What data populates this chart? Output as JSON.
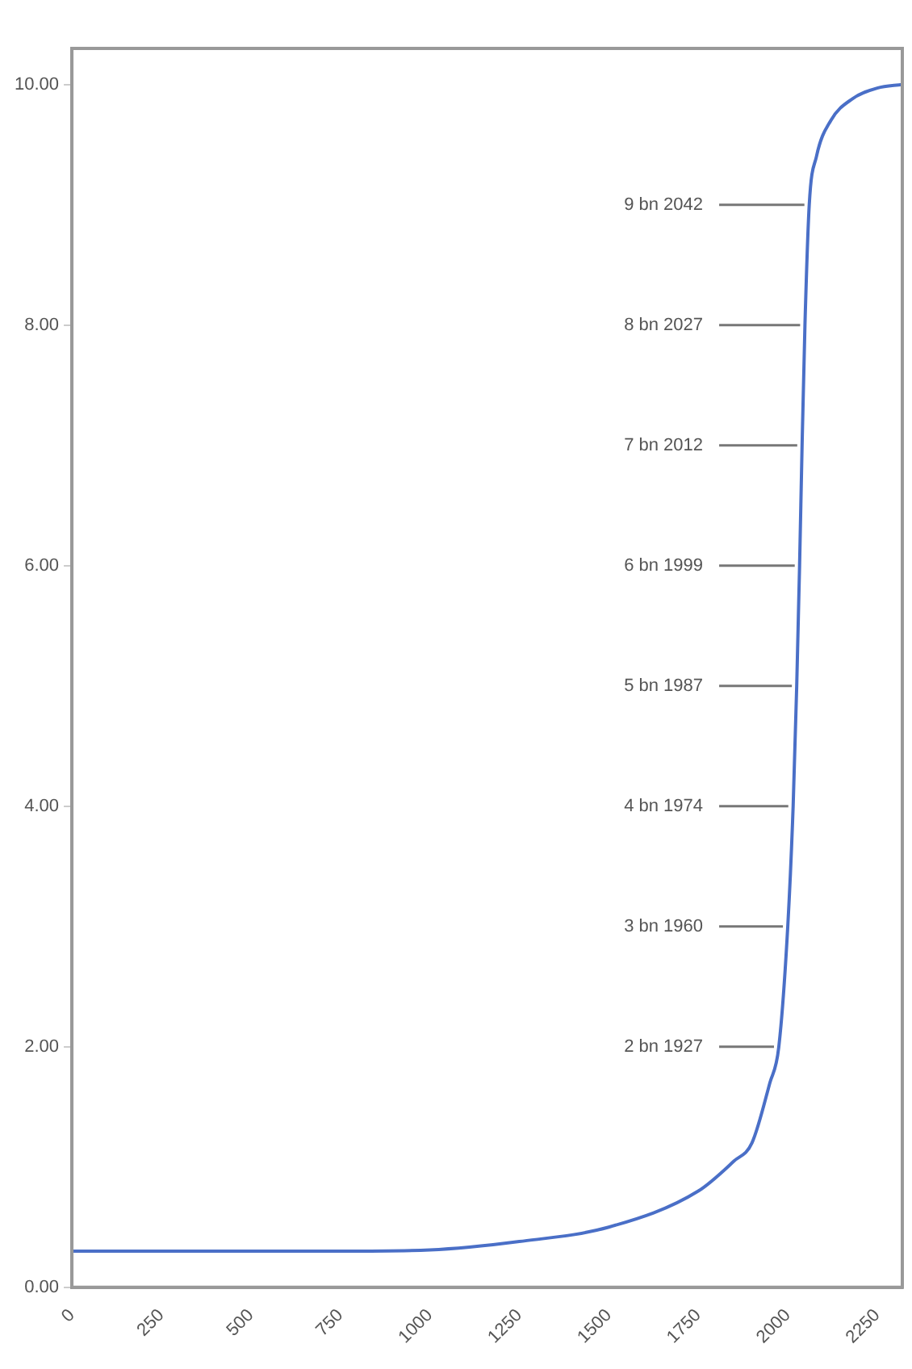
{
  "chart_data": {
    "type": "line",
    "x": [
      0,
      250,
      500,
      750,
      1000,
      1250,
      1500,
      1750,
      1850,
      1900,
      1950,
      1975,
      2000,
      2015,
      2025,
      2033,
      2040,
      2048,
      2060,
      2080,
      2120,
      2180,
      2250,
      2320
    ],
    "series": [
      {
        "color": "#4a6fc7",
        "values": [
          0.3,
          0.3,
          0.3,
          0.3,
          0.31,
          0.38,
          0.5,
          0.8,
          1.05,
          1.2,
          1.7,
          2.0,
          3.0,
          4.0,
          5.0,
          6.0,
          7.0,
          8.0,
          9.0,
          9.4,
          9.7,
          9.88,
          9.97,
          10.0
        ]
      }
    ],
    "xlim": [
      0,
      2320
    ],
    "xticks": [
      0,
      250,
      500,
      750,
      1000,
      1250,
      1500,
      1750,
      2000,
      2250
    ],
    "ylim": [
      0,
      10.3
    ],
    "yticks": [
      {
        "value": 0,
        "label": "0.00"
      },
      {
        "value": 2,
        "label": "2.00"
      },
      {
        "value": 4,
        "label": "4.00"
      },
      {
        "value": 6,
        "label": "6.00"
      },
      {
        "value": 8,
        "label": "8.00"
      },
      {
        "value": 10,
        "label": "10.00"
      }
    ],
    "annotations": [
      {
        "text": "9 bn 2042",
        "x": 2060,
        "y": 9
      },
      {
        "text": "8 bn 2027",
        "x": 2048,
        "y": 8
      },
      {
        "text": "7 bn 2012",
        "x": 2040,
        "y": 7
      },
      {
        "text": "6 bn 1999",
        "x": 2033,
        "y": 6
      },
      {
        "text": "5 bn 1987",
        "x": 2025,
        "y": 5
      },
      {
        "text": "4 bn 1974",
        "x": 2015,
        "y": 4
      },
      {
        "text": "3 bn 1960",
        "x": 2000,
        "y": 3
      },
      {
        "text": "2 bn 1927",
        "x": 1975,
        "y": 2
      }
    ],
    "grid": false,
    "legend": false,
    "marker": "none",
    "line_style": "solid"
  }
}
